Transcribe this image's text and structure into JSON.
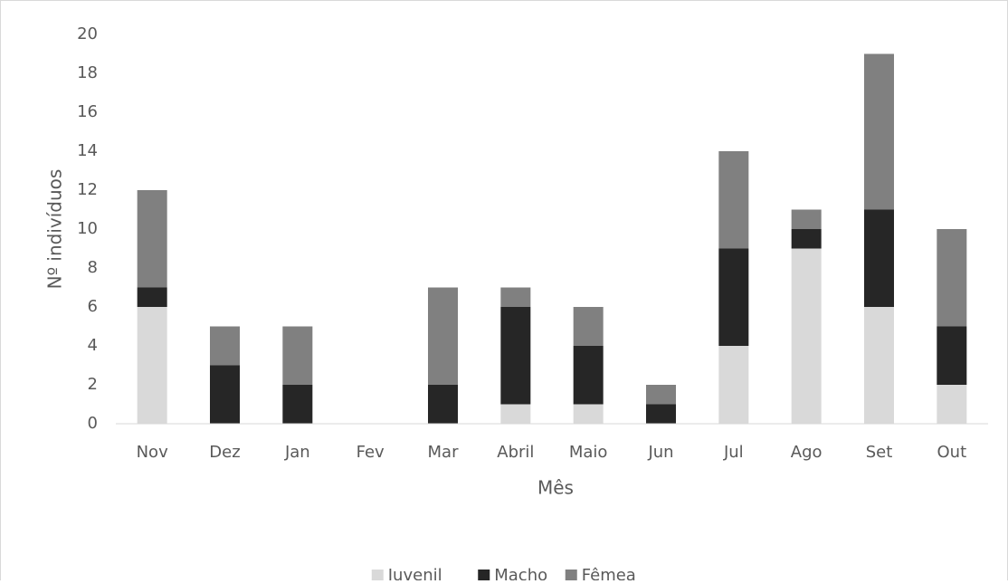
{
  "chart_data": {
    "type": "stacked_bar",
    "x_label": "Mês",
    "y_label": "Nº indivíduos",
    "categories": [
      "Nov",
      "Dez",
      "Jan",
      "Fev",
      "Mar",
      "Abril",
      "Maio",
      "Jun",
      "Jul",
      "Ago",
      "Set",
      "Out"
    ],
    "series": [
      {
        "name": "Juvenil",
        "color": "#d9d9d9",
        "values": [
          6,
          0,
          0,
          0,
          0,
          1,
          1,
          0,
          4,
          9,
          6,
          2
        ]
      },
      {
        "name": "Macho",
        "color": "#262626",
        "values": [
          1,
          3,
          2,
          0,
          2,
          5,
          3,
          1,
          5,
          1,
          5,
          3
        ]
      },
      {
        "name": "Fêmea",
        "color": "#808080",
        "values": [
          5,
          2,
          3,
          0,
          5,
          1,
          2,
          1,
          5,
          1,
          8,
          5
        ]
      }
    ],
    "ylim": [
      0,
      20
    ],
    "yticks": [
      0,
      2,
      4,
      6,
      8,
      10,
      12,
      14,
      16,
      18,
      20
    ],
    "grid": false,
    "legend": "bottom"
  }
}
